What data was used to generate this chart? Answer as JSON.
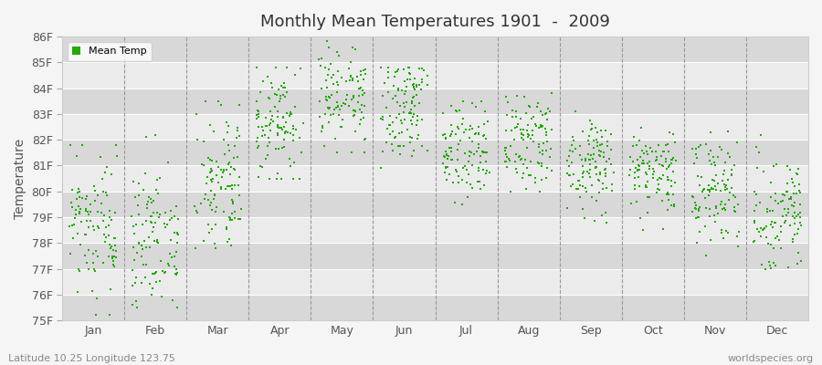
{
  "title": "Monthly Mean Temperatures 1901  -  2009",
  "ylabel": "Temperature",
  "bottom_left": "Latitude 10.25 Longitude 123.75",
  "bottom_right": "worldspecies.org",
  "legend_label": "Mean Temp",
  "marker_color": "#22aa00",
  "bg_color": "#f5f5f5",
  "plot_bg_color": "#ebebeb",
  "band_color_dark": "#d8d8d8",
  "band_color_light": "#ebebeb",
  "ylim": [
    75,
    86
  ],
  "ytick_labels": [
    "75F",
    "76F",
    "77F",
    "78F",
    "79F",
    "80F",
    "81F",
    "82F",
    "83F",
    "84F",
    "85F",
    "86F"
  ],
  "months": [
    "Jan",
    "Feb",
    "Mar",
    "Apr",
    "May",
    "Jun",
    "Jul",
    "Aug",
    "Sep",
    "Oct",
    "Nov",
    "Dec"
  ],
  "year_start": 1901,
  "year_end": 2009,
  "monthly_means": [
    78.5,
    78.2,
    80.2,
    82.5,
    83.8,
    83.2,
    81.5,
    81.8,
    81.0,
    80.8,
    80.0,
    79.2
  ],
  "monthly_stds": [
    1.3,
    1.4,
    1.4,
    1.1,
    1.1,
    1.0,
    0.9,
    0.9,
    0.9,
    0.9,
    1.0,
    1.1
  ],
  "monthly_mins": [
    75.2,
    75.5,
    77.8,
    80.5,
    81.5,
    80.5,
    79.5,
    80.0,
    78.8,
    78.5,
    77.5,
    77.0
  ],
  "monthly_maxs": [
    81.8,
    82.2,
    83.5,
    84.8,
    86.3,
    84.8,
    83.5,
    83.8,
    83.2,
    83.2,
    82.5,
    82.2
  ]
}
